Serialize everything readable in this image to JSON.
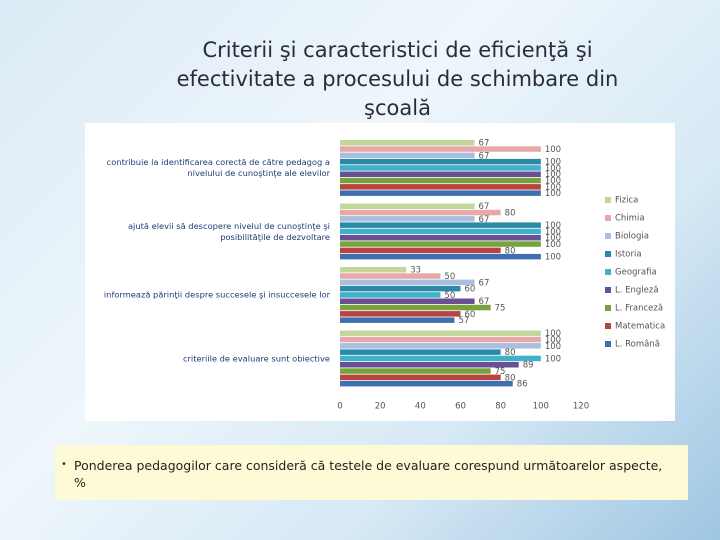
{
  "chart_data": {
    "type": "barh",
    "title": "Criterii şi caracteristici de eficienţă şi efectivitate a procesului de schimbare din şcoală",
    "categories": [
      "contribuie la identificarea corectă de către pedagog a nivelului de cunoştinţe ale elevilor",
      "ajută elevii să descopere nivelul de cunoştinţe şi posibilităţile de dezvoltare",
      "informează părinţii despre succesele şi insuccesele lor",
      "criteriile de evaluare sunt obiective"
    ],
    "series": [
      {
        "name": "Fizica",
        "color": "#c3d69b",
        "values": [
          67,
          67,
          33,
          100
        ]
      },
      {
        "name": "Chimia",
        "color": "#e6a9a8",
        "values": [
          100,
          80,
          50,
          100
        ]
      },
      {
        "name": "Biologia",
        "color": "#a9bfe0",
        "values": [
          67,
          67,
          67,
          100
        ]
      },
      {
        "name": "Istoria",
        "color": "#2c8aa6",
        "values": [
          100,
          100,
          60,
          80
        ]
      },
      {
        "name": "Geografia",
        "color": "#3fb1c9",
        "values": [
          100,
          100,
          50,
          100
        ]
      },
      {
        "name": "L. Engleză",
        "color": "#6a4f92",
        "values": [
          100,
          100,
          67,
          89
        ]
      },
      {
        "name": "L. Franceză",
        "color": "#76a33c",
        "values": [
          100,
          100,
          75,
          75
        ]
      },
      {
        "name": "Matematica",
        "color": "#b8433f",
        "values": [
          100,
          80,
          60,
          80
        ]
      },
      {
        "name": "L. Română",
        "color": "#3f6fae",
        "values": [
          100,
          100,
          57,
          86
        ]
      }
    ],
    "xlim": [
      0,
      120
    ],
    "xticks": [
      0,
      20,
      40,
      60,
      80,
      100,
      120
    ],
    "legend": "right",
    "caption": "Ponderea pedagogilor care consideră că testele de evaluare corespund următoarelor aspecte, %"
  }
}
